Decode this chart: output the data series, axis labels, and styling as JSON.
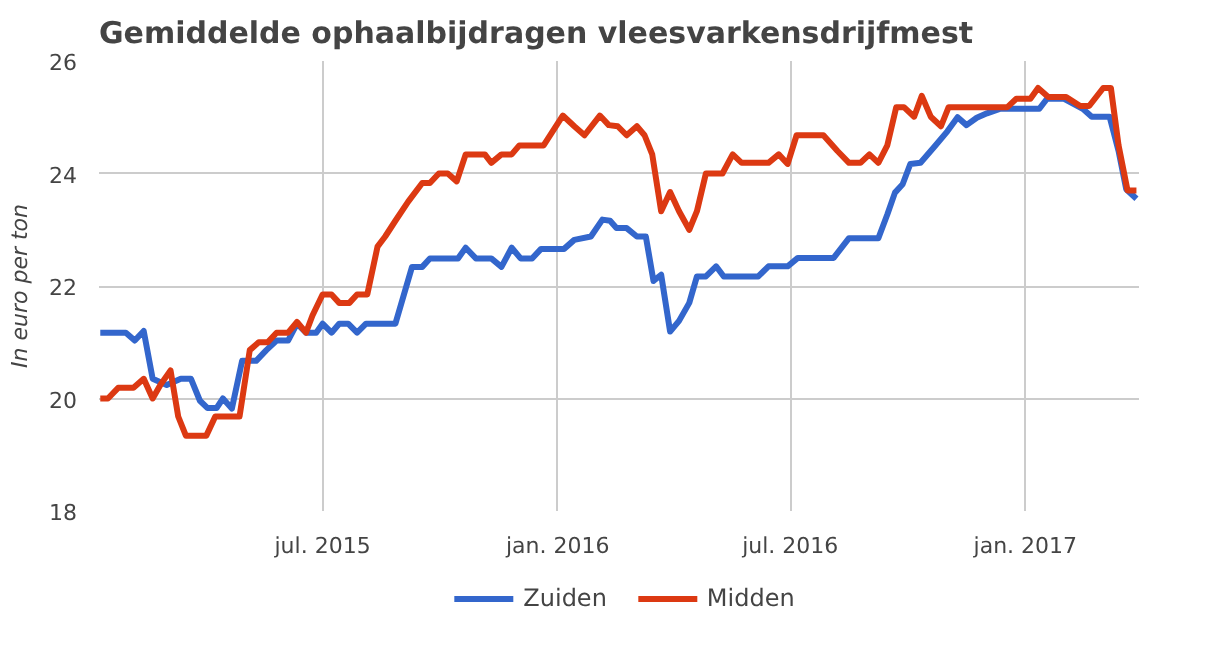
{
  "chart_data": {
    "type": "line",
    "title": "Gemiddelde ophaalbijdragen vleesvarkensdrijfmest",
    "ylabel": "In euro per ton",
    "xlim": [
      "2015-01-07",
      "2017-03-31"
    ],
    "xticks": [
      {
        "value": "2015-07-01",
        "label": "jul. 2015"
      },
      {
        "value": "2016-01-01",
        "label": "jan. 2016"
      },
      {
        "value": "2016-07-01",
        "label": "jul. 2016"
      },
      {
        "value": "2017-01-01",
        "label": "jan. 2017"
      }
    ],
    "ylim": [
      18,
      26
    ],
    "yticks": [
      18,
      20,
      22,
      24,
      26
    ],
    "grid": true,
    "legend": "bottom",
    "marker": "none",
    "line_style": "solid",
    "series": [
      {
        "name": "Zuiden",
        "color": "#3366cc",
        "x": [
          "2015-01-08",
          "2015-01-28",
          "2015-02-04",
          "2015-02-11",
          "2015-02-18",
          "2015-03-01",
          "2015-03-12",
          "2015-03-20",
          "2015-03-27",
          "2015-04-02",
          "2015-04-09",
          "2015-04-14",
          "2015-04-21",
          "2015-04-29",
          "2015-05-10",
          "2015-05-18",
          "2015-05-26",
          "2015-06-04",
          "2015-06-11",
          "2015-06-18",
          "2015-06-26",
          "2015-07-01",
          "2015-07-08",
          "2015-07-14",
          "2015-07-21",
          "2015-07-28",
          "2015-08-04",
          "2015-08-27",
          "2015-09-09",
          "2015-09-17",
          "2015-09-23",
          "2015-10-15",
          "2015-10-21",
          "2015-10-29",
          "2015-11-10",
          "2015-11-18",
          "2015-11-26",
          "2015-12-03",
          "2015-12-12",
          "2015-12-19",
          "2016-01-06",
          "2016-01-14",
          "2016-01-27",
          "2016-02-05",
          "2016-02-11",
          "2016-02-16",
          "2016-02-24",
          "2016-03-03",
          "2016-03-10",
          "2016-03-16",
          "2016-03-22",
          "2016-03-29",
          "2016-04-05",
          "2016-04-13",
          "2016-04-19",
          "2016-04-26",
          "2016-05-04",
          "2016-05-10",
          "2016-06-06",
          "2016-06-14",
          "2016-06-29",
          "2016-07-07",
          "2016-08-04",
          "2016-08-16",
          "2016-09-08",
          "2016-09-15",
          "2016-09-21",
          "2016-09-27",
          "2016-10-03",
          "2016-10-11",
          "2016-10-22",
          "2016-11-01",
          "2016-11-09",
          "2016-11-16",
          "2016-11-24",
          "2016-12-02",
          "2016-12-12",
          "2017-01-12",
          "2017-01-18",
          "2017-01-31",
          "2017-02-15",
          "2017-02-22",
          "2017-03-08",
          "2017-03-15",
          "2017-03-21",
          "2017-03-29"
        ],
        "values": [
          21.17,
          21.17,
          21.03,
          21.2,
          20.35,
          20.24,
          20.35,
          20.35,
          19.96,
          19.83,
          19.83,
          20.0,
          19.82,
          20.67,
          20.67,
          20.86,
          21.03,
          21.03,
          21.33,
          21.17,
          21.17,
          21.33,
          21.17,
          21.33,
          21.33,
          21.17,
          21.33,
          21.33,
          22.34,
          22.34,
          22.49,
          22.49,
          22.68,
          22.49,
          22.49,
          22.34,
          22.68,
          22.49,
          22.49,
          22.66,
          22.66,
          22.82,
          22.88,
          23.18,
          23.16,
          23.03,
          23.03,
          22.88,
          22.88,
          22.09,
          22.2,
          21.19,
          21.38,
          21.7,
          22.17,
          22.17,
          22.35,
          22.17,
          22.17,
          22.35,
          22.35,
          22.5,
          22.5,
          22.85,
          22.85,
          23.27,
          23.66,
          23.81,
          24.17,
          24.19,
          24.48,
          24.75,
          25.0,
          24.86,
          24.99,
          25.07,
          25.15,
          25.15,
          25.33,
          25.33,
          25.15,
          25.01,
          25.01,
          24.4,
          23.72,
          23.55
        ]
      },
      {
        "name": "Midden",
        "color": "#dc3912",
        "x": [
          "2015-01-08",
          "2015-01-14",
          "2015-01-22",
          "2015-02-03",
          "2015-02-11",
          "2015-02-18",
          "2015-02-24",
          "2015-03-04",
          "2015-03-10",
          "2015-03-16",
          "2015-04-01",
          "2015-04-08",
          "2015-04-27",
          "2015-05-05",
          "2015-05-12",
          "2015-05-19",
          "2015-05-26",
          "2015-06-04",
          "2015-06-11",
          "2015-06-18",
          "2015-06-23",
          "2015-07-01",
          "2015-07-08",
          "2015-07-14",
          "2015-07-22",
          "2015-07-28",
          "2015-08-05",
          "2015-08-13",
          "2015-08-19",
          "2015-08-27",
          "2015-09-06",
          "2015-09-17",
          "2015-09-23",
          "2015-09-30",
          "2015-10-07",
          "2015-10-14",
          "2015-10-21",
          "2015-11-05",
          "2015-11-10",
          "2015-11-18",
          "2015-11-26",
          "2015-12-02",
          "2015-12-21",
          "2016-01-05",
          "2016-01-14",
          "2016-01-22",
          "2016-02-03",
          "2016-02-10",
          "2016-02-17",
          "2016-02-24",
          "2016-03-03",
          "2016-03-09",
          "2016-03-15",
          "2016-03-22",
          "2016-03-29",
          "2016-04-05",
          "2016-04-13",
          "2016-04-19",
          "2016-04-26",
          "2016-05-09",
          "2016-05-17",
          "2016-05-24",
          "2016-06-14",
          "2016-06-22",
          "2016-06-29",
          "2016-07-06",
          "2016-07-27",
          "2016-08-07",
          "2016-08-16",
          "2016-08-25",
          "2016-09-01",
          "2016-09-08",
          "2016-09-15",
          "2016-09-22",
          "2016-09-28",
          "2016-10-06",
          "2016-10-12",
          "2016-10-19",
          "2016-10-27",
          "2016-11-02",
          "2016-12-18",
          "2016-12-25",
          "2017-01-05",
          "2017-01-11",
          "2017-01-19",
          "2017-02-02",
          "2017-02-13",
          "2017-02-20",
          "2017-03-03",
          "2017-03-09",
          "2017-03-15",
          "2017-03-22",
          "2017-03-29"
        ],
        "values": [
          20.0,
          20.0,
          20.19,
          20.19,
          20.35,
          20.0,
          20.24,
          20.5,
          19.68,
          19.34,
          19.34,
          19.68,
          19.68,
          20.86,
          21.0,
          21.0,
          21.17,
          21.17,
          21.36,
          21.17,
          21.47,
          21.85,
          21.85,
          21.7,
          21.7,
          21.85,
          21.85,
          22.7,
          22.88,
          23.16,
          23.5,
          23.83,
          23.83,
          24.0,
          24.0,
          23.86,
          24.34,
          24.34,
          24.19,
          24.34,
          24.34,
          24.5,
          24.5,
          25.03,
          24.84,
          24.68,
          25.03,
          24.86,
          24.84,
          24.68,
          24.84,
          24.68,
          24.34,
          23.33,
          23.67,
          23.33,
          23.0,
          23.33,
          24.0,
          24.0,
          24.34,
          24.19,
          24.19,
          24.34,
          24.17,
          24.68,
          24.68,
          24.4,
          24.19,
          24.19,
          24.34,
          24.19,
          24.5,
          25.18,
          25.18,
          25.01,
          25.38,
          25.01,
          24.84,
          25.18,
          25.18,
          25.33,
          25.33,
          25.52,
          25.36,
          25.36,
          25.2,
          25.2,
          25.52,
          25.52,
          24.5,
          23.7,
          23.7
        ]
      }
    ]
  }
}
